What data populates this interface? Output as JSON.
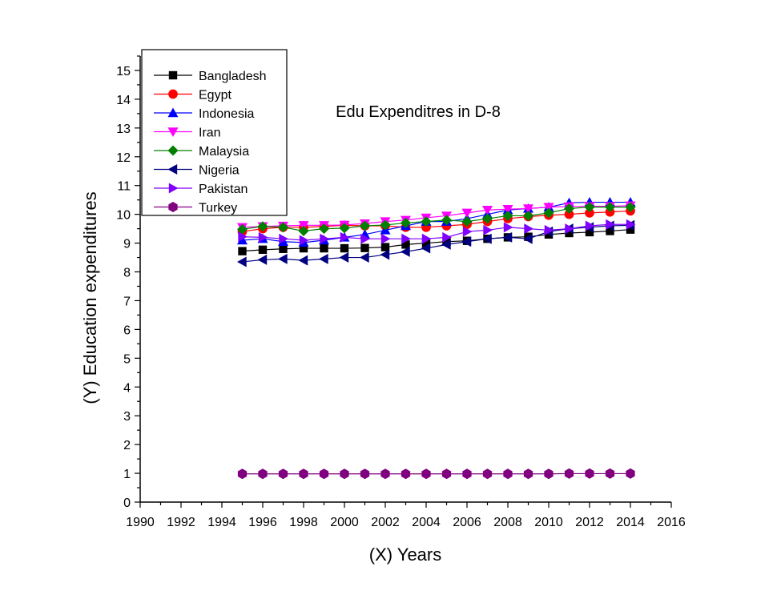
{
  "chart_data": {
    "type": "line",
    "title": "Edu Expenditres in D-8",
    "xlabel": "(X) Years",
    "ylabel": "(Y) Education expenditures",
    "xlim": [
      1990,
      2016
    ],
    "ylim": [
      0,
      15.5
    ],
    "xticks": [
      1990,
      1992,
      1994,
      1996,
      1998,
      2000,
      2002,
      2004,
      2006,
      2008,
      2010,
      2012,
      2014,
      2016
    ],
    "yticks": [
      0,
      1,
      2,
      3,
      4,
      5,
      6,
      7,
      8,
      9,
      10,
      11,
      12,
      13,
      14,
      15
    ],
    "grid": false,
    "legend_position": "top-left",
    "x": [
      1995,
      1996,
      1997,
      1998,
      1999,
      2000,
      2001,
      2002,
      2003,
      2004,
      2005,
      2006,
      2007,
      2008,
      2009,
      2010,
      2011,
      2012,
      2013,
      2014
    ],
    "series": [
      {
        "name": "Bangladesh",
        "color": "#000000",
        "marker": "square",
        "values": [
          8.72,
          8.77,
          8.8,
          8.82,
          8.82,
          8.82,
          8.83,
          8.86,
          8.95,
          9.0,
          9.05,
          9.08,
          9.15,
          9.2,
          9.22,
          9.3,
          9.35,
          9.38,
          9.42,
          9.47
        ]
      },
      {
        "name": "Egypt",
        "color": "#ff0000",
        "marker": "circle",
        "values": [
          9.4,
          9.5,
          9.55,
          9.55,
          9.58,
          9.62,
          9.6,
          9.6,
          9.55,
          9.55,
          9.6,
          9.65,
          9.75,
          9.85,
          9.92,
          9.97,
          10.0,
          10.05,
          10.08,
          10.12
        ]
      },
      {
        "name": "Indonesia",
        "color": "#0000ff",
        "marker": "triangle-up",
        "values": [
          9.1,
          9.15,
          9.05,
          9.02,
          9.1,
          9.2,
          9.3,
          9.45,
          9.6,
          9.75,
          9.75,
          9.85,
          10.0,
          10.15,
          10.2,
          10.25,
          10.4,
          10.42,
          10.42,
          10.42
        ]
      },
      {
        "name": "Iran",
        "color": "#ff00ff",
        "marker": "triangle-down",
        "values": [
          9.55,
          9.58,
          9.6,
          9.62,
          9.62,
          9.63,
          9.68,
          9.75,
          9.8,
          9.88,
          9.95,
          10.05,
          10.15,
          10.18,
          10.2,
          10.25,
          10.27,
          10.28,
          10.28,
          10.3
        ]
      },
      {
        "name": "Malaysia",
        "color": "#008000",
        "marker": "diamond",
        "values": [
          9.48,
          9.58,
          9.55,
          9.42,
          9.5,
          9.52,
          9.6,
          9.63,
          9.7,
          9.75,
          9.8,
          9.75,
          9.85,
          9.95,
          9.95,
          10.05,
          10.2,
          10.25,
          10.25,
          10.25
        ]
      },
      {
        "name": "Nigeria",
        "color": "#000080",
        "marker": "triangle-left",
        "values": [
          8.35,
          8.42,
          8.45,
          8.4,
          8.45,
          8.5,
          8.5,
          8.6,
          8.7,
          8.82,
          8.95,
          9.05,
          9.15,
          9.2,
          9.15,
          9.4,
          9.5,
          9.55,
          9.6,
          9.62
        ]
      },
      {
        "name": "Pakistan",
        "color": "#8000ff",
        "marker": "triangle-right",
        "values": [
          9.22,
          9.2,
          9.15,
          9.1,
          9.15,
          9.2,
          9.15,
          9.15,
          9.15,
          9.15,
          9.2,
          9.4,
          9.45,
          9.55,
          9.5,
          9.45,
          9.5,
          9.6,
          9.65,
          9.65
        ]
      },
      {
        "name": "Turkey",
        "color": "#800080",
        "marker": "hexagon",
        "values": [
          0.98,
          0.98,
          0.98,
          0.98,
          0.98,
          0.98,
          0.98,
          0.98,
          0.98,
          0.98,
          0.98,
          0.98,
          0.98,
          0.98,
          0.98,
          0.98,
          0.99,
          0.99,
          0.99,
          0.99
        ]
      }
    ]
  }
}
